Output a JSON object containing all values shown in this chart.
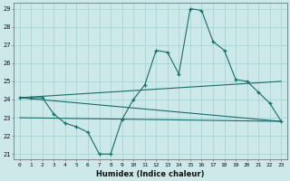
{
  "xlabel": "Humidex (Indice chaleur)",
  "xlim": [
    -0.5,
    23.5
  ],
  "ylim": [
    20.7,
    29.3
  ],
  "yticks": [
    21,
    22,
    23,
    24,
    25,
    26,
    27,
    28,
    29
  ],
  "xticks": [
    0,
    1,
    2,
    3,
    4,
    5,
    6,
    7,
    8,
    9,
    10,
    11,
    12,
    13,
    14,
    15,
    16,
    17,
    18,
    19,
    20,
    21,
    22,
    23
  ],
  "bg_color": "#cce8e8",
  "grid_color": "#aad4d4",
  "line_color": "#1a6b6b",
  "line1_x": [
    0,
    1,
    2,
    3,
    4,
    5,
    6,
    7,
    8,
    9,
    10,
    11,
    12,
    13,
    14,
    15,
    16,
    17,
    18,
    19,
    20,
    21,
    22,
    23
  ],
  "line1_y": [
    24.1,
    24.1,
    24.1,
    23.2,
    22.7,
    22.5,
    22.2,
    21.0,
    21.0,
    22.9,
    24.0,
    24.8,
    26.7,
    26.6,
    25.4,
    29.0,
    28.9,
    27.2,
    26.7,
    25.1,
    25.0,
    24.4,
    23.8,
    22.8
  ],
  "line2_x": [
    0,
    23
  ],
  "line2_y": [
    24.1,
    22.8
  ],
  "line3_x": [
    0,
    23
  ],
  "line3_y": [
    23.0,
    22.8
  ],
  "line4_x": [
    0,
    23
  ],
  "line4_y": [
    24.1,
    25.0
  ]
}
